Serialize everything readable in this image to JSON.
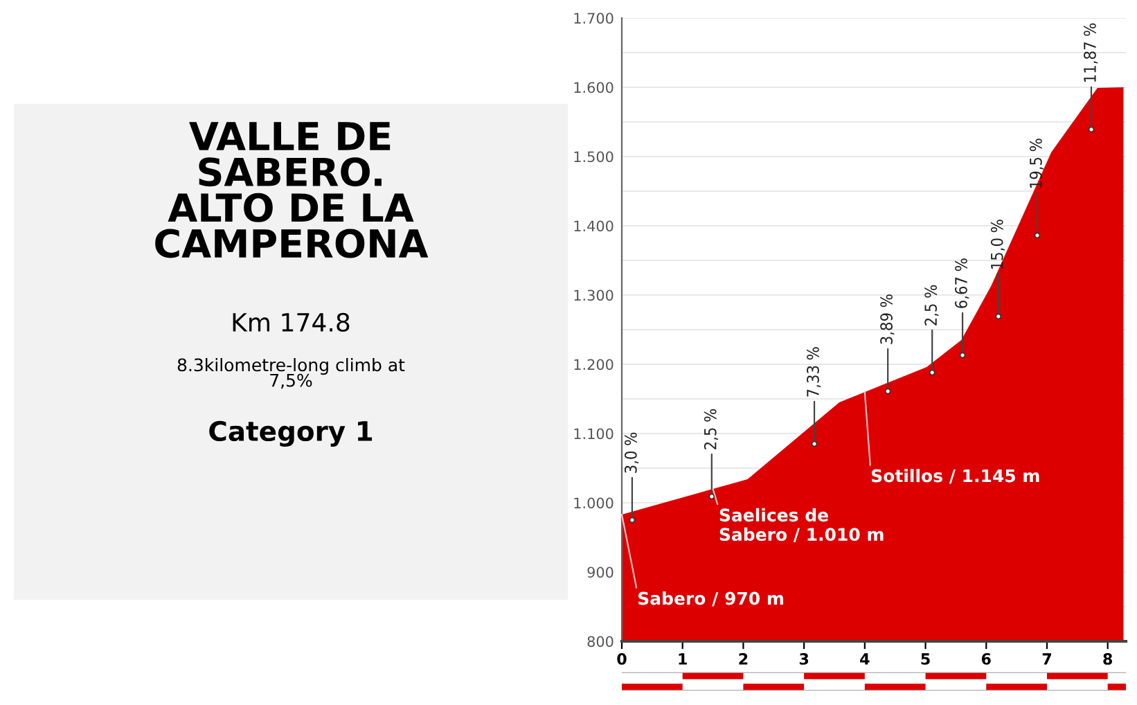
{
  "chart_data": [
    {
      "type": "other",
      "title": "VALLE DE\nSABERO.\nALTO DE LA\nCAMPERONA",
      "subtitle": "Km 174.8",
      "annotations": [
        "8.3kilometre-long climb at\n7,5%",
        "Category 1"
      ]
    },
    {
      "type": "area",
      "x": [
        0,
        2.07,
        3.58,
        5.02,
        5.59,
        6.08,
        7.07,
        7.83,
        8.26
      ],
      "series": [
        {
          "color": "#dd0000",
          "values": [
            983,
            1034,
            1145,
            1196,
            1235,
            1313,
            1506,
            1599,
            1600
          ]
        }
      ],
      "xlim": [
        0,
        8.3
      ],
      "xticks": [
        0,
        1,
        2,
        3,
        4,
        5,
        6,
        7,
        8
      ],
      "ylim": [
        800,
        1700
      ],
      "yticks": [
        800,
        {
          "value": 850,
          "label": null
        },
        900,
        {
          "value": 950,
          "label": null
        },
        {
          "value": 1000,
          "label": "1.000"
        },
        {
          "value": 1050,
          "label": null
        },
        {
          "value": 1100,
          "label": "1.100"
        },
        {
          "value": 1150,
          "label": null
        },
        {
          "value": 1200,
          "label": "1.200"
        },
        {
          "value": 1250,
          "label": null
        },
        {
          "value": 1300,
          "label": "1.300"
        },
        {
          "value": 1350,
          "label": null
        },
        {
          "value": 1400,
          "label": "1.400"
        },
        {
          "value": 1450,
          "label": null
        },
        {
          "value": 1500,
          "label": "1.500"
        },
        {
          "value": 1550,
          "label": null
        },
        {
          "value": 1600,
          "label": "1.600"
        },
        {
          "value": 1650,
          "label": null
        },
        {
          "value": 1700,
          "label": "1.700"
        }
      ],
      "grid": "y",
      "annotations": [
        {
          "text": "3,0 %",
          "x": 0.17,
          "y": 975
        },
        {
          "text": "2,5 %",
          "x": 1.48,
          "y": 1009
        },
        {
          "text": "7,33 %",
          "x": 3.17,
          "y": 1085
        },
        {
          "text": "3,89 %",
          "x": 4.38,
          "y": 1161
        },
        {
          "text": "2,5 %",
          "x": 5.11,
          "y": 1188
        },
        {
          "text": "6,67 %",
          "x": 5.61,
          "y": 1213
        },
        {
          "text": "15,0 %",
          "x": 6.2,
          "y": 1269
        },
        {
          "text": "19,5 %",
          "x": 6.84,
          "y": 1386
        },
        {
          "text": "11,87 %",
          "x": 7.73,
          "y": 1539
        },
        {
          "text": "Sabero / 970 m",
          "x": 0,
          "y": 983
        },
        {
          "text": "Saelices de\nSabero / 1.010 m",
          "x": 1.5,
          "y": 1020
        },
        {
          "text": "Sotillos / 1.145 m",
          "x": 4,
          "y": 1160
        }
      ]
    }
  ]
}
